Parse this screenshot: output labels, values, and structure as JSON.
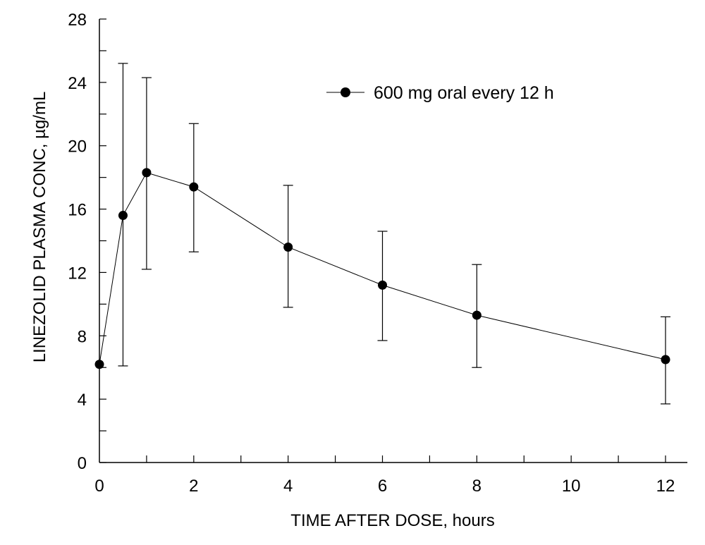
{
  "chart_data": {
    "type": "line",
    "title": "",
    "xlabel": "TIME AFTER DOSE, hours",
    "ylabel": "LINEZOLID PLASMA CONC, µg/mL",
    "xlim": [
      0,
      12.5
    ],
    "ylim": [
      0,
      28
    ],
    "xticks": [
      0,
      2,
      4,
      6,
      8,
      10,
      12
    ],
    "yticks": [
      0,
      4,
      8,
      12,
      16,
      20,
      24,
      28
    ],
    "grid": false,
    "legend_position": "top-right",
    "series": [
      {
        "name": "600 mg oral every 12 h",
        "color": "#000000",
        "marker": "filled-circle",
        "x": [
          0,
          0.5,
          1,
          2,
          4,
          6,
          8,
          12
        ],
        "y": [
          6.2,
          15.6,
          18.3,
          17.4,
          13.6,
          11.2,
          9.3,
          6.5
        ],
        "error_upper": [
          null,
          25.2,
          24.3,
          21.4,
          17.5,
          14.6,
          12.5,
          9.2
        ],
        "error_lower": [
          null,
          6.1,
          12.2,
          13.3,
          9.8,
          7.7,
          6.0,
          3.7
        ]
      }
    ]
  }
}
